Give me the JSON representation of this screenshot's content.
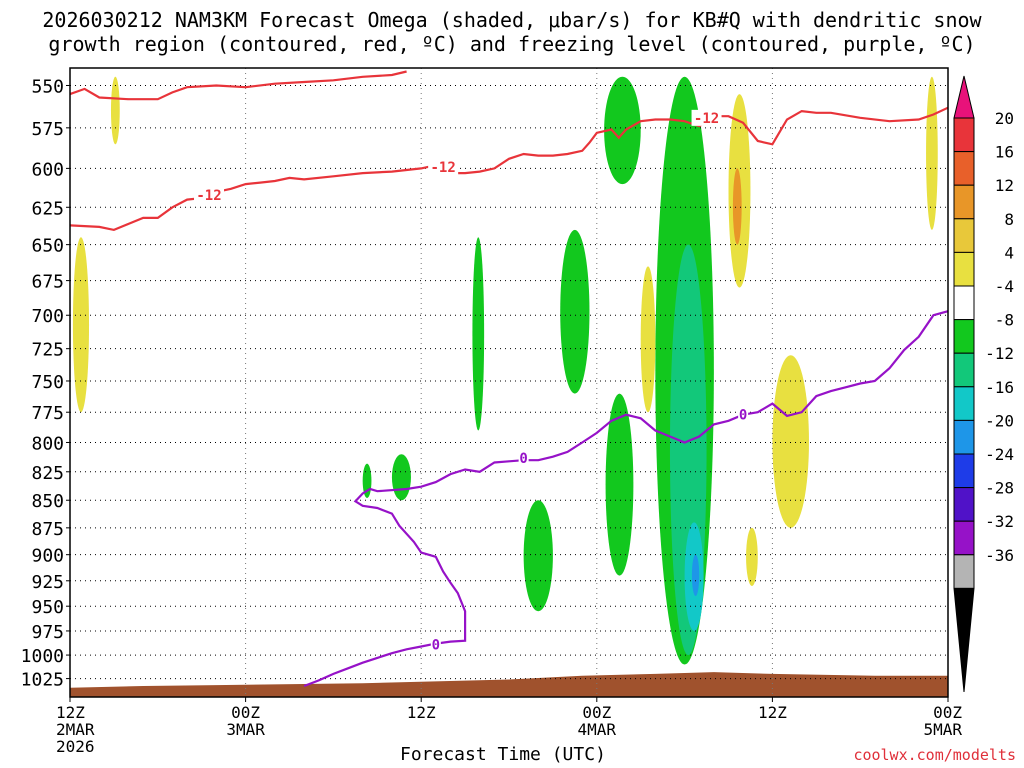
{
  "title_line1": "2026030212 NAM3KM Forecast Omega (shaded, μbar/s) for KB#Q with dendritic snow",
  "title_line2": "growth region (contoured, red, ºC) and freezing level (contoured, purple, ºC)",
  "credit": "coolwx.com/modelts",
  "chart_data": {
    "type": "contour-time-height",
    "title": "2026030212 NAM3KM Forecast Omega (shaded, μbar/s) for KB#Q with dendritic snow growth region (contoured, red, ºC) and freezing level (contoured, purple, ºC)",
    "xlabel": "Forecast Time (UTC)",
    "ylabel": "",
    "x_unit": "hours from 2026-03-02 12Z",
    "xlim": [
      0,
      60
    ],
    "ylim": [
      540,
      1045
    ],
    "y_scale": "log-pressure (hPa), top-down",
    "y_ticks": [
      550,
      575,
      600,
      625,
      650,
      675,
      700,
      725,
      750,
      775,
      800,
      825,
      850,
      875,
      900,
      925,
      950,
      975,
      1000,
      1025
    ],
    "x_ticks": [
      {
        "x": 0,
        "label": [
          "12Z",
          "2MAR",
          "2026"
        ]
      },
      {
        "x": 12,
        "label": [
          "00Z",
          "3MAR"
        ]
      },
      {
        "x": 24,
        "label": [
          "12Z"
        ]
      },
      {
        "x": 36,
        "label": [
          "00Z",
          "4MAR"
        ]
      },
      {
        "x": 48,
        "label": [
          "12Z"
        ]
      },
      {
        "x": 60,
        "label": [
          "00Z",
          "5MAR"
        ]
      }
    ],
    "grid": "dotted",
    "colorbar": {
      "labels": [
        "20",
        "16",
        "12",
        "8",
        "4",
        "-4",
        "-8",
        "-12",
        "-16",
        "-20",
        "-24",
        "-28",
        "-32",
        "-36"
      ],
      "colors": [
        "#e8127a",
        "#e8343a",
        "#e8602a",
        "#e89628",
        "#e8c83a",
        "#e8e040",
        "#ffffff",
        "#12c81e",
        "#12c87a",
        "#12c8c8",
        "#1e96e8",
        "#1e3ce8",
        "#5012c8",
        "#9612c8",
        "#b4b4b4",
        "#000000"
      ]
    },
    "dgz_minus12_upper": [
      [
        0,
        555
      ],
      [
        1,
        552
      ],
      [
        2,
        557
      ],
      [
        4,
        558
      ],
      [
        6,
        558
      ],
      [
        7,
        554
      ],
      [
        8,
        551
      ],
      [
        10,
        550
      ],
      [
        12,
        551
      ],
      [
        14,
        549
      ],
      [
        16,
        548
      ],
      [
        18,
        547
      ],
      [
        20,
        545
      ],
      [
        22,
        544
      ],
      [
        23,
        542
      ]
    ],
    "dgz_minus12_lower": [
      [
        0,
        637
      ],
      [
        2,
        638
      ],
      [
        3,
        640
      ],
      [
        4,
        636
      ],
      [
        5,
        632
      ],
      [
        6,
        632
      ],
      [
        7,
        625
      ],
      [
        8,
        620
      ],
      [
        9,
        619
      ],
      [
        10,
        615
      ],
      [
        11,
        613
      ],
      [
        12,
        610
      ],
      [
        13,
        609
      ],
      [
        14,
        608
      ],
      [
        15,
        606
      ],
      [
        16,
        607
      ],
      [
        18,
        605
      ],
      [
        20,
        603
      ],
      [
        22,
        602
      ],
      [
        24,
        600
      ],
      [
        25,
        598
      ],
      [
        26,
        599
      ],
      [
        26.5,
        603
      ],
      [
        27,
        603
      ],
      [
        28,
        602
      ],
      [
        29,
        600
      ],
      [
        30,
        594
      ],
      [
        31,
        591
      ],
      [
        32,
        592
      ],
      [
        33,
        592
      ],
      [
        34,
        591
      ],
      [
        35,
        589
      ],
      [
        35.5,
        584
      ],
      [
        36,
        578
      ],
      [
        37,
        576
      ],
      [
        37.5,
        581
      ],
      [
        38,
        576
      ],
      [
        39,
        571
      ],
      [
        40,
        570
      ],
      [
        41,
        570
      ],
      [
        42,
        571
      ],
      [
        43,
        574
      ],
      [
        44,
        569
      ],
      [
        44.5,
        568
      ],
      [
        45,
        568
      ],
      [
        46,
        572
      ],
      [
        47,
        583
      ],
      [
        48,
        585
      ],
      [
        49,
        570
      ],
      [
        50,
        565
      ],
      [
        51,
        566
      ],
      [
        52,
        566
      ],
      [
        54,
        569
      ],
      [
        56,
        571
      ],
      [
        58,
        570
      ],
      [
        59,
        567
      ],
      [
        60,
        563
      ]
    ],
    "freezing_level_0C": [
      [
        16,
        1033
      ],
      [
        17,
        1027
      ],
      [
        18,
        1020
      ],
      [
        19,
        1014
      ],
      [
        20,
        1008
      ],
      [
        21,
        1003
      ],
      [
        22,
        998
      ],
      [
        23,
        994
      ],
      [
        24,
        991
      ],
      [
        25,
        988
      ],
      [
        26,
        986
      ],
      [
        27,
        985
      ],
      [
        27,
        977
      ],
      [
        27,
        968
      ],
      [
        27,
        955
      ],
      [
        26.5,
        937
      ],
      [
        26,
        927
      ],
      [
        25.5,
        916
      ],
      [
        25,
        902
      ],
      [
        24,
        898
      ],
      [
        23.5,
        888
      ],
      [
        22.5,
        873
      ],
      [
        22,
        862
      ],
      [
        21,
        857
      ],
      [
        20,
        855
      ],
      [
        19.5,
        851
      ],
      [
        20,
        844
      ],
      [
        20.5,
        840
      ],
      [
        21,
        842
      ],
      [
        23,
        840
      ],
      [
        24,
        838
      ],
      [
        25,
        834
      ],
      [
        26,
        827
      ],
      [
        27,
        823
      ],
      [
        28,
        825
      ],
      [
        29,
        817
      ],
      [
        30,
        816
      ],
      [
        31,
        815
      ],
      [
        32,
        815
      ],
      [
        33,
        812
      ],
      [
        34,
        808
      ],
      [
        35,
        800
      ],
      [
        36,
        792
      ],
      [
        37,
        782
      ],
      [
        38,
        777
      ],
      [
        39,
        780
      ],
      [
        40,
        790
      ],
      [
        41,
        795
      ],
      [
        42,
        800
      ],
      [
        43,
        795
      ],
      [
        44,
        785
      ],
      [
        45,
        782
      ],
      [
        46,
        777
      ],
      [
        47,
        775
      ],
      [
        48,
        768
      ],
      [
        49,
        778
      ],
      [
        50,
        775
      ],
      [
        51,
        762
      ],
      [
        52,
        758
      ],
      [
        53,
        755
      ],
      [
        54,
        752
      ],
      [
        55,
        750
      ],
      [
        56,
        740
      ],
      [
        57,
        726
      ],
      [
        58,
        716
      ],
      [
        59,
        700
      ],
      [
        60,
        697
      ]
    ],
    "contour_labels": [
      {
        "text": "-12",
        "x": 9.5,
        "y": 617,
        "color": "#e8343a"
      },
      {
        "text": "-12",
        "x": 25.5,
        "y": 599,
        "color": "#e8343a"
      },
      {
        "text": "-12",
        "x": 43.5,
        "y": 569,
        "color": "#e8343a"
      },
      {
        "text": "0",
        "x": 31,
        "y": 813,
        "color": "#9612c8"
      },
      {
        "text": "0",
        "x": 25,
        "y": 989,
        "color": "#9612c8"
      },
      {
        "text": "0",
        "x": 46,
        "y": 777,
        "color": "#9612c8"
      }
    ],
    "omega_regions": [
      {
        "level": "-4",
        "color": "#12c81e",
        "bbox_data": [
          36.5,
          545,
          39,
          610
        ]
      },
      {
        "level": "-4",
        "color": "#12c81e",
        "bbox_data": [
          33.5,
          640,
          35.5,
          760
        ]
      },
      {
        "level": "-4",
        "color": "#12c81e",
        "bbox_data": [
          27.5,
          645,
          28.3,
          790
        ]
      },
      {
        "level": "-4",
        "color": "#12c81e",
        "bbox_data": [
          36.6,
          760,
          38.5,
          920
        ]
      },
      {
        "level": "-4",
        "color": "#12c81e",
        "bbox_data": [
          31,
          850,
          33,
          955
        ]
      },
      {
        "level": "-4",
        "color": "#12c81e",
        "bbox_data": [
          22,
          810,
          23.3,
          850
        ]
      },
      {
        "level": "-4",
        "color": "#12c81e",
        "bbox_data": [
          20,
          818,
          20.6,
          848
        ]
      },
      {
        "level": "-4",
        "color": "#12c81e",
        "bbox_data": [
          40,
          545,
          44,
          1010
        ]
      },
      {
        "level": "-8",
        "color": "#12c87a",
        "bbox_data": [
          41,
          650,
          43.5,
          1000
        ]
      },
      {
        "level": "-12",
        "color": "#12c8c8",
        "bbox_data": [
          42,
          870,
          43.3,
          975
        ]
      },
      {
        "level": "-16",
        "color": "#1e96e8",
        "bbox_data": [
          42.5,
          900,
          43,
          940
        ]
      },
      {
        "level": "4",
        "color": "#e8e040",
        "bbox_data": [
          0.2,
          645,
          1.3,
          775
        ]
      },
      {
        "level": "4",
        "color": "#e8e040",
        "bbox_data": [
          2.8,
          545,
          3.4,
          585
        ]
      },
      {
        "level": "4",
        "color": "#e8e040",
        "bbox_data": [
          45,
          555,
          46.5,
          680
        ]
      },
      {
        "level": "4",
        "color": "#e8e040",
        "bbox_data": [
          48,
          730,
          50.5,
          875
        ]
      },
      {
        "level": "4",
        "color": "#e8e040",
        "bbox_data": [
          39,
          665,
          40,
          775
        ]
      },
      {
        "level": "4",
        "color": "#e8e040",
        "bbox_data": [
          58.5,
          545,
          59.3,
          640
        ]
      },
      {
        "level": "4",
        "color": "#e8e040",
        "bbox_data": [
          46.2,
          875,
          47,
          930
        ]
      },
      {
        "level": "8",
        "color": "#e89628",
        "bbox_data": [
          45.3,
          600,
          45.9,
          650
        ]
      }
    ],
    "terrain_surface": [
      [
        0,
        1035
      ],
      [
        5,
        1033
      ],
      [
        10,
        1032
      ],
      [
        20,
        1030
      ],
      [
        30,
        1026
      ],
      [
        35,
        1022
      ],
      [
        40,
        1020
      ],
      [
        44,
        1018
      ],
      [
        48,
        1020
      ],
      [
        55,
        1022
      ],
      [
        60,
        1022
      ]
    ],
    "terrain_color": "#a0522d"
  }
}
